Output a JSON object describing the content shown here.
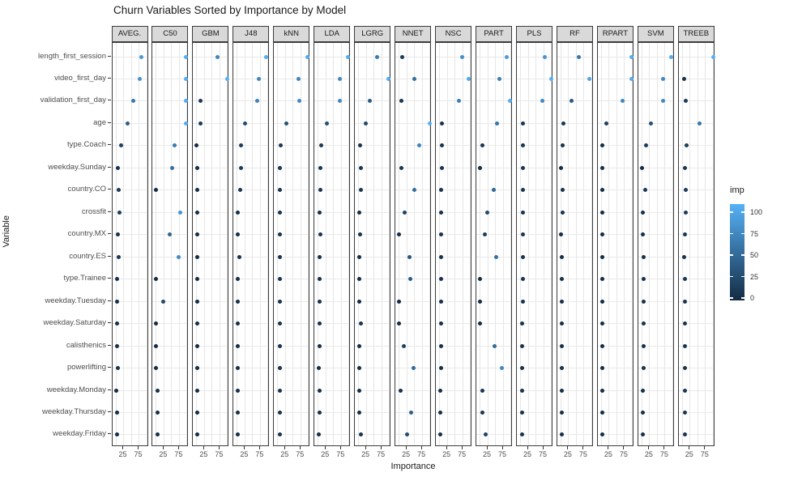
{
  "chart_data": {
    "type": "scatter",
    "title": "Churn Variables Sorted by Importance by Model",
    "xlabel": "Importance",
    "ylabel": "Variable",
    "x_ticks": [
      25,
      75
    ],
    "xlim": [
      0,
      100
    ],
    "grid": true,
    "facets": [
      "AVEG.",
      "C50",
      "GBM",
      "J48",
      "kNN",
      "LDA",
      "LGRG",
      "NNET",
      "NSC",
      "PART",
      "PLS",
      "RF",
      "RPART",
      "SVM",
      "TREEB"
    ],
    "categories": [
      "length_first_session",
      "video_first_day",
      "validation_first_day",
      "age",
      "type.Coach",
      "weekday.Sunday",
      "country.CO",
      "crossfit",
      "country.MX",
      "country.ES",
      "type.Trainee",
      "weekday.Tuesday",
      "weekday.Saturday",
      "calisthenics",
      "powerlifting",
      "weekday.Monday",
      "weekday.Thursday",
      "weekday.Friday"
    ],
    "series": [
      {
        "name": "AVEG.",
        "values": [
          82,
          78,
          57,
          38,
          16,
          7,
          10,
          12,
          7,
          9,
          5,
          4,
          4,
          5,
          7,
          1,
          3,
          3
        ]
      },
      {
        "name": "C50",
        "values": [
          97,
          97,
          95,
          97,
          60,
          51,
          0,
          78,
          43,
          72,
          0,
          22,
          0,
          0,
          0,
          3,
          3,
          3
        ]
      },
      {
        "name": "GBM",
        "values": [
          67,
          100,
          12,
          11,
          0,
          2,
          2,
          2,
          2,
          2,
          2,
          2,
          2,
          2,
          2,
          2,
          2,
          2
        ]
      },
      {
        "name": "J48",
        "values": [
          95,
          69,
          66,
          25,
          12,
          12,
          9,
          2,
          2,
          6,
          3,
          3,
          3,
          3,
          3,
          3,
          3,
          3
        ]
      },
      {
        "name": "kNN",
        "values": [
          96,
          67,
          70,
          28,
          10,
          8,
          8,
          6,
          6,
          7,
          6,
          6,
          6,
          6,
          6,
          6,
          6,
          6
        ]
      },
      {
        "name": "LDA",
        "values": [
          96,
          70,
          70,
          28,
          11,
          8,
          8,
          4,
          6,
          5,
          5,
          5,
          5,
          4,
          3,
          4,
          4,
          2
        ]
      },
      {
        "name": "LGRG",
        "values": [
          60,
          96,
          36,
          23,
          6,
          8,
          8,
          3,
          6,
          2,
          3,
          3,
          7,
          3,
          3,
          2,
          3,
          7
        ]
      },
      {
        "name": "NNET",
        "values": [
          11,
          50,
          8,
          100,
          66,
          8,
          50,
          17,
          0,
          33,
          37,
          0,
          0,
          15,
          46,
          5,
          40,
          26
        ]
      },
      {
        "name": "NSC",
        "values": [
          74,
          95,
          63,
          7,
          7,
          7,
          6,
          6,
          6,
          5,
          5,
          4,
          4,
          4,
          4,
          3,
          3,
          2
        ]
      },
      {
        "name": "PART",
        "values": [
          86,
          63,
          97,
          55,
          9,
          0,
          44,
          24,
          15,
          53,
          0,
          0,
          0,
          47,
          70,
          9,
          9,
          18
        ]
      },
      {
        "name": "PLS",
        "values": [
          78,
          100,
          70,
          8,
          8,
          8,
          8,
          8,
          8,
          7,
          7,
          7,
          6,
          6,
          5,
          6,
          6,
          6
        ]
      },
      {
        "name": "RF",
        "values": [
          57,
          91,
          35,
          8,
          6,
          0,
          6,
          6,
          1,
          3,
          3,
          3,
          3,
          3,
          3,
          3,
          3,
          4
        ]
      },
      {
        "name": "RPART",
        "values": [
          97,
          97,
          69,
          15,
          2,
          2,
          2,
          2,
          2,
          2,
          2,
          2,
          2,
          2,
          2,
          2,
          2,
          2
        ]
      },
      {
        "name": "SVM",
        "values": [
          96,
          70,
          70,
          29,
          13,
          1,
          11,
          4,
          4,
          6,
          6,
          6,
          6,
          6,
          6,
          4,
          4,
          4
        ]
      },
      {
        "name": "TREEB",
        "values": [
          100,
          5,
          12,
          55,
          14,
          9,
          12,
          12,
          9,
          6,
          8,
          8,
          8,
          8,
          8,
          8,
          8,
          8
        ]
      }
    ],
    "legend": {
      "title": "imp",
      "ticks": [
        0,
        25,
        50,
        75,
        100
      ],
      "position": "right",
      "low_color": "#132B43",
      "high_color": "#56B1F7"
    }
  }
}
